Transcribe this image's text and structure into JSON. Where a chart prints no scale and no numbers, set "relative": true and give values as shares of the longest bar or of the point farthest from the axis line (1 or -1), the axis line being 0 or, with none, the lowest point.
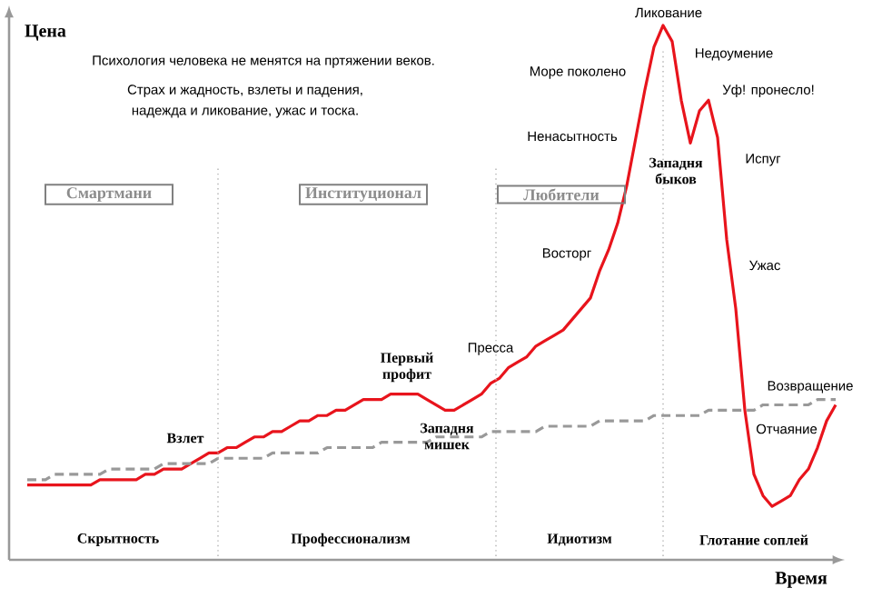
{
  "chart_data": {
    "type": "line",
    "relative": true,
    "xlabel": "Время",
    "ylabel": "Цена",
    "categories": [
      null,
      null,
      null,
      null,
      null,
      null,
      null,
      null,
      null,
      null,
      null,
      null,
      null,
      null,
      null,
      null,
      null,
      null,
      null,
      null,
      null,
      null,
      null,
      null,
      null,
      null,
      null,
      null,
      null,
      null,
      null,
      null,
      null,
      null,
      null,
      null,
      null,
      null,
      null,
      null,
      null,
      null,
      null,
      null,
      null,
      null,
      null,
      null,
      null,
      null,
      null,
      null,
      null,
      null,
      null,
      null,
      null,
      null,
      null,
      null,
      null,
      null,
      null,
      null,
      null,
      null,
      null,
      null,
      null,
      null,
      null,
      null,
      null,
      null,
      null,
      null,
      null,
      null,
      null,
      null,
      null,
      null,
      null,
      null,
      null,
      null,
      null,
      null,
      null,
      null
    ],
    "series": [
      {
        "color": "#e8141c",
        "line_style": "solid",
        "values": [
          0.14,
          0.14,
          0.14,
          0.14,
          0.14,
          0.14,
          0.14,
          0.14,
          0.15,
          0.15,
          0.15,
          0.15,
          0.15,
          0.16,
          0.16,
          0.17,
          0.17,
          0.17,
          0.18,
          0.19,
          0.2,
          0.2,
          0.21,
          0.21,
          0.22,
          0.23,
          0.23,
          0.24,
          0.24,
          0.25,
          0.26,
          0.26,
          0.27,
          0.27,
          0.28,
          0.28,
          0.29,
          0.3,
          0.3,
          0.3,
          0.31,
          0.31,
          0.31,
          0.31,
          0.3,
          0.29,
          0.28,
          0.28,
          0.29,
          0.3,
          0.31,
          0.33,
          0.34,
          0.36,
          0.37,
          0.38,
          0.4,
          0.41,
          0.42,
          0.43,
          0.45,
          0.47,
          0.49,
          0.54,
          0.58,
          0.63,
          0.7,
          0.79,
          0.88,
          0.96,
          1,
          0.97,
          0.86,
          0.78,
          0.84,
          0.86,
          0.79,
          0.6,
          0.47,
          0.28,
          0.16,
          0.12,
          0.1,
          0.11,
          0.12,
          0.15,
          0.17,
          0.21,
          0.26,
          0.29
        ]
      },
      {
        "color": "#999999",
        "line_style": "dashed",
        "values": [
          0.15,
          0.15,
          0.15,
          0.16,
          0.16,
          0.16,
          0.16,
          0.16,
          0.16,
          0.17,
          0.17,
          0.17,
          0.17,
          0.17,
          0.17,
          0.18,
          0.18,
          0.18,
          0.18,
          0.18,
          0.18,
          0.19,
          0.19,
          0.19,
          0.19,
          0.19,
          0.19,
          0.2,
          0.2,
          0.2,
          0.2,
          0.2,
          0.2,
          0.21,
          0.21,
          0.21,
          0.21,
          0.21,
          0.21,
          0.22,
          0.22,
          0.22,
          0.22,
          0.22,
          0.22,
          0.23,
          0.23,
          0.23,
          0.23,
          0.23,
          0.23,
          0.24,
          0.24,
          0.24,
          0.24,
          0.24,
          0.24,
          0.25,
          0.25,
          0.25,
          0.25,
          0.25,
          0.25,
          0.26,
          0.26,
          0.26,
          0.26,
          0.26,
          0.26,
          0.27,
          0.27,
          0.27,
          0.27,
          0.27,
          0.27,
          0.28,
          0.28,
          0.28,
          0.28,
          0.28,
          0.28,
          0.29,
          0.29,
          0.29,
          0.29,
          0.29,
          0.29,
          0.3,
          0.3,
          0.3
        ]
      }
    ],
    "annotations": [
      "Психология человека не менятся на пртяжении веков.",
      "Страх и жадность, взлеты и падения,",
      "надежда и ликование, ужас и тоска.",
      "Смартмани",
      "Институционал",
      "Любители",
      "Скрытность",
      "Профессионализм",
      "Идиотизм",
      "Глотание соплей",
      "Взлет",
      "Первый профит",
      "Западня мишек",
      "Пресса",
      "Восторг",
      "Ненасытность",
      "Море поколено",
      "Ликование",
      "Недоумение",
      "Уф! пронесло!",
      "Западня быков",
      "Испуг",
      "Ужас",
      "Возвращение",
      "Отчаяние"
    ]
  }
}
